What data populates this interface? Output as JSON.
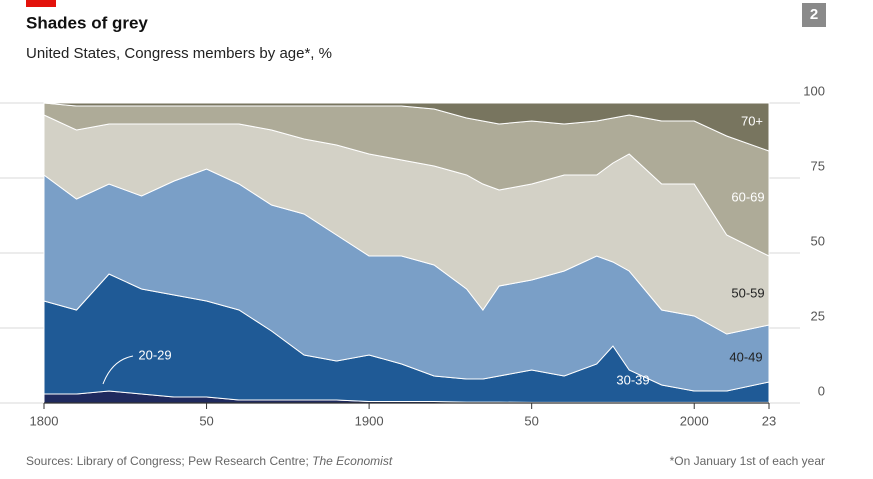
{
  "chart_data": {
    "type": "stacked_area",
    "page_number": "2",
    "title": "Shades of grey",
    "subtitle": "United States, Congress members by age*, %",
    "source": "Sources: Library of Congress; Pew Research Centre; ",
    "source_publication": "The Economist",
    "footnote": "*On January 1st of each year",
    "x": [
      1800,
      1810,
      1820,
      1830,
      1840,
      1850,
      1860,
      1870,
      1880,
      1890,
      1900,
      1910,
      1920,
      1930,
      1935,
      1940,
      1950,
      1960,
      1970,
      1975,
      1980,
      1990,
      2000,
      2010,
      2023
    ],
    "series": [
      {
        "name": "20-29",
        "color": "#1f2a5e",
        "values": [
          3,
          3,
          4,
          3,
          2,
          2,
          1,
          1,
          1,
          1,
          0.5,
          0.5,
          0.5,
          0.3,
          0.3,
          0.3,
          0.2,
          0.2,
          0.2,
          0.2,
          0.2,
          0.2,
          0.2,
          0.2,
          0.2
        ]
      },
      {
        "name": "30-39",
        "color": "#1f5a96",
        "values": [
          31,
          28,
          39,
          35,
          34,
          32,
          30,
          23,
          15,
          13,
          15.5,
          12.5,
          8.5,
          7.7,
          7.7,
          8.7,
          10.8,
          8.8,
          12.8,
          18.8,
          10.8,
          5.8,
          3.8,
          3.8,
          6.8
        ]
      },
      {
        "name": "40-49",
        "color": "#7a9fc7",
        "values": [
          42,
          37,
          30,
          31,
          38,
          44,
          42,
          42,
          47,
          42,
          33,
          36,
          37,
          30,
          23,
          30,
          30,
          35,
          36,
          28,
          33,
          25,
          25,
          19,
          19
        ]
      },
      {
        "name": "50-59",
        "color": "#d3d1c6",
        "values": [
          20,
          23,
          20,
          24,
          19,
          15,
          20,
          25,
          25,
          30,
          34,
          32,
          33,
          38,
          42,
          32,
          32,
          32,
          27,
          33,
          39,
          42,
          44,
          33,
          23
        ]
      },
      {
        "name": "60-69",
        "color": "#aeab98",
        "values": [
          4,
          8,
          6,
          6,
          6,
          6,
          6,
          8,
          11,
          13,
          16,
          18,
          19,
          19,
          21,
          22,
          21,
          17,
          18,
          15,
          13,
          21,
          21,
          33,
          35
        ]
      },
      {
        "name": "70+",
        "color": "#78755f",
        "values": [
          0,
          1,
          1,
          1,
          1,
          1,
          1,
          1,
          1,
          1,
          1,
          1,
          2,
          5,
          6,
          7,
          6,
          7,
          6,
          5,
          4,
          6,
          6,
          11,
          16
        ]
      }
    ],
    "xlim": [
      1800,
      2023
    ],
    "xticks": [
      1800,
      {
        "value": 1850,
        "label": "50"
      },
      1900,
      {
        "value": 1950,
        "label": "50"
      },
      2000,
      {
        "value": 2023,
        "label": "23"
      }
    ],
    "ylim": [
      0,
      100
    ],
    "yticks": [
      0,
      25,
      50,
      75,
      100
    ],
    "grid": true
  }
}
